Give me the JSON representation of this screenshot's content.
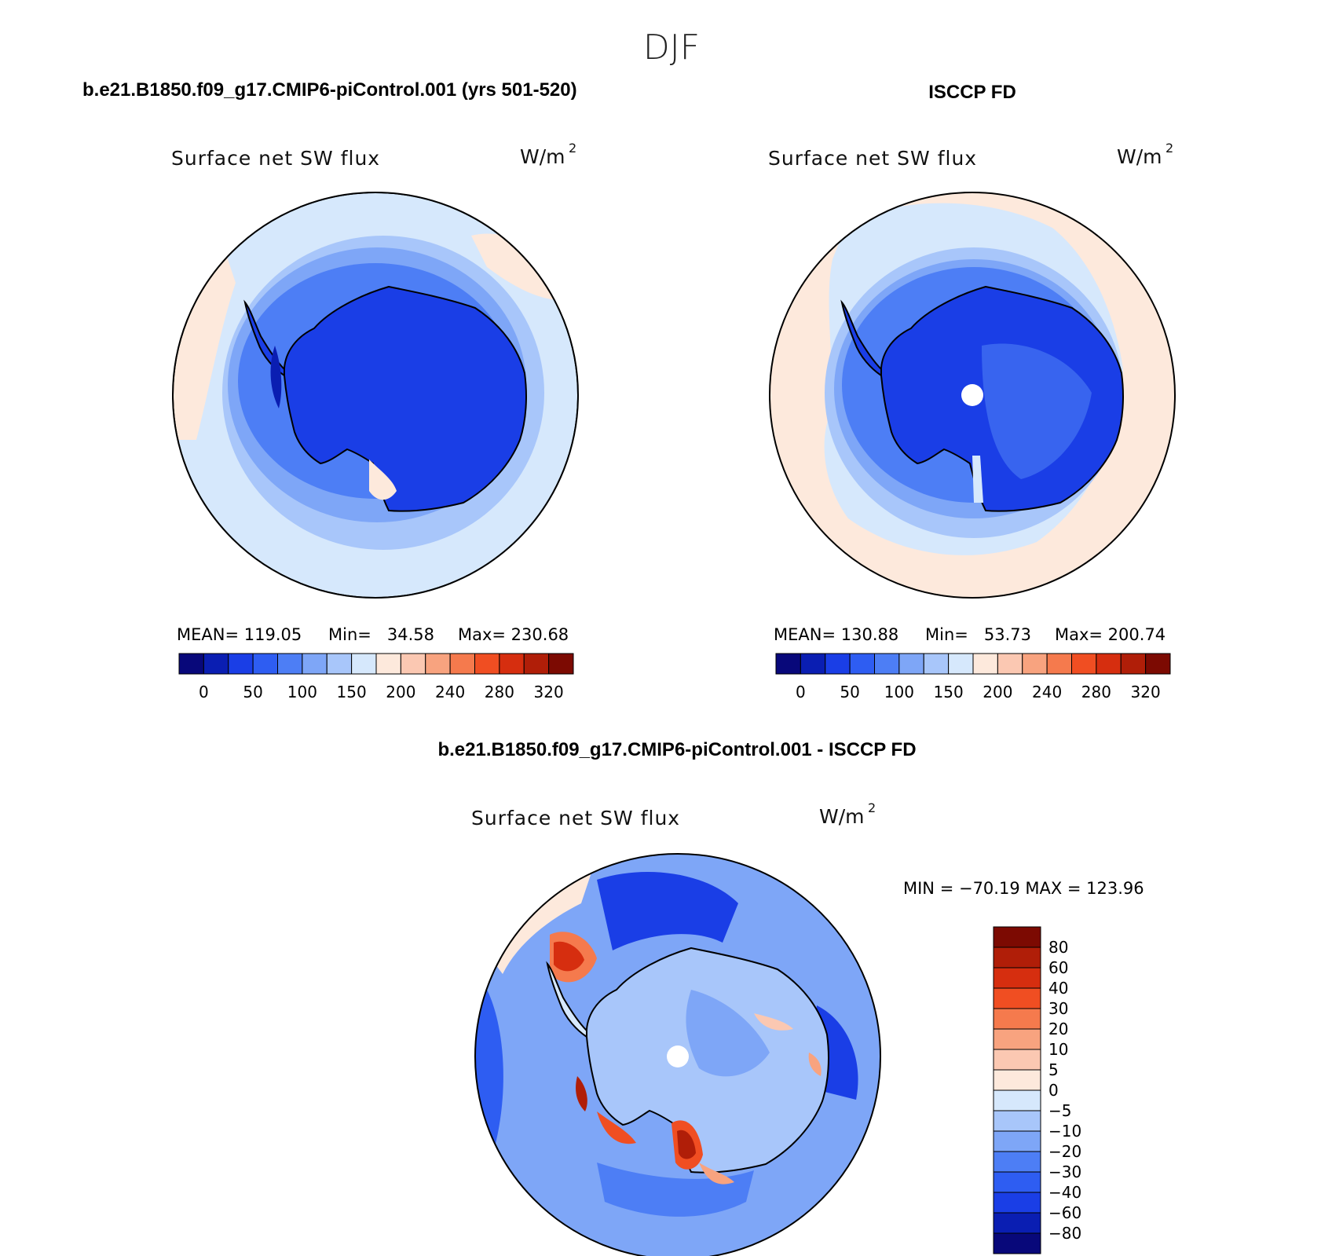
{
  "page_title": "DJF",
  "panels": [
    {
      "title": "b.e21.B1850.f09_g17.CMIP6-piControl.001 (yrs 501-520)",
      "variable": "Surface net SW flux",
      "units_base": "W/m",
      "units_exp": "2",
      "stats": {
        "mean": "MEAN= 119.05",
        "min": "Min=   34.58",
        "max": "Max= 230.68"
      },
      "pole_hole": false
    },
    {
      "title": "ISCCP FD",
      "variable": "Surface net SW flux",
      "units_base": "W/m",
      "units_exp": "2",
      "stats": {
        "mean": "MEAN= 130.88",
        "min": "Min=   53.73",
        "max": "Max= 200.74"
      },
      "pole_hole": true
    }
  ],
  "colorbar_top": {
    "colors": [
      "#08087a",
      "#0a1eb2",
      "#1a3ee6",
      "#2e5df2",
      "#4d7ef5",
      "#7ea6f7",
      "#a8c6fa",
      "#d6e8fc",
      "#fde9dc",
      "#fbc8b2",
      "#f8a37f",
      "#f57a4d",
      "#f04e22",
      "#d62e0f",
      "#b01e08",
      "#7c0a02"
    ],
    "labels": [
      "0",
      "50",
      "100",
      "150",
      "200",
      "240",
      "280",
      "320"
    ]
  },
  "diff_panel": {
    "title": "b.e21.B1850.f09_g17.CMIP6-piControl.001 - ISCCP FD",
    "variable": "Surface net SW flux",
    "units_base": "W/m",
    "units_exp": "2",
    "minmax": "MIN = −70.19 MAX = 123.96",
    "pole_hole": true
  },
  "colorbar_diff": {
    "colors_top_to_bottom": [
      "#7c0a02",
      "#b01e08",
      "#d62e0f",
      "#f04e22",
      "#f57a4d",
      "#f8a37f",
      "#fbc8b2",
      "#fde9dc",
      "#d6e8fc",
      "#a8c6fa",
      "#7ea6f7",
      "#4d7ef5",
      "#2e5df2",
      "#1a3ee6",
      "#0a1eb2",
      "#08087a"
    ],
    "labels": [
      "80",
      "60",
      "40",
      "30",
      "20",
      "10",
      "5",
      "0",
      "−5",
      "−10",
      "−20",
      "−30",
      "−40",
      "−60",
      "−80"
    ]
  }
}
